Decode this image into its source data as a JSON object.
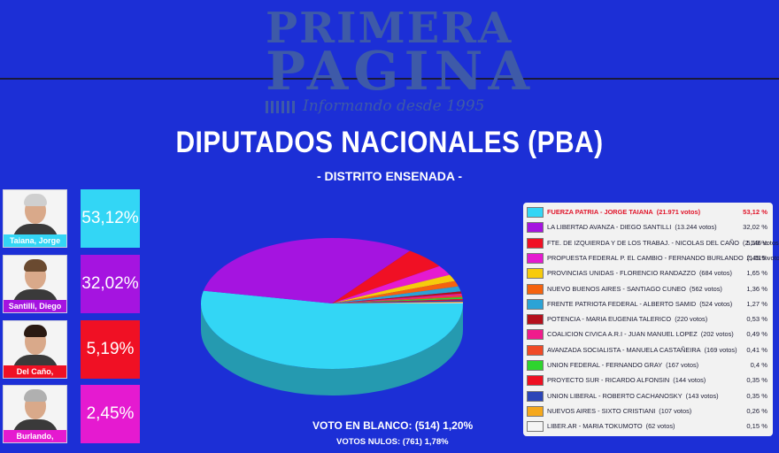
{
  "header": {
    "logo_line1": "PRIMERA",
    "logo_line2": "PAGINA",
    "logo_slogan": "Informando desde 1995"
  },
  "title": "DIPUTADOS NACIONALES (PBA)",
  "subtitle": "- DISTRITO ENSENADA -",
  "candidates": [
    {
      "name": "Taiana, Jorge",
      "pct": "53,12%",
      "color": "#33d6f5",
      "hair": "#cfcfcf"
    },
    {
      "name": "Santilli, Diego",
      "pct": "32,02%",
      "color": "#a514e0",
      "hair": "#6a4a30"
    },
    {
      "name": "Del Caño, Nicolás",
      "pct": "5,19%",
      "color": "#f01024",
      "hair": "#2a1a12"
    },
    {
      "name": "Burlando, Fernando",
      "pct": "2,45%",
      "color": "#e51ad0",
      "hair": "#b0b0b0"
    }
  ],
  "chart_data": {
    "type": "pie",
    "style": "3d",
    "legend_position": "right",
    "series": [
      {
        "label": "FUERZA PATRIA - JORGE TAIANA",
        "votes": "(21.971 votos)",
        "pct_label": "53,12 %",
        "value": 53.12,
        "color": "#33d6f5",
        "highlight": true
      },
      {
        "label": "LA LIBERTAD AVANZA - DIEGO SANTILLI",
        "votes": "(13.244 votos)",
        "pct_label": "32,02 %",
        "value": 32.02,
        "color": "#a514e0"
      },
      {
        "label": "FTE. DE IZQUIERDA Y DE LOS TRABAJ. - NICOLAS DEL CAÑO",
        "votes": "(2.146 votos)",
        "pct_label": "5,19 %",
        "value": 5.19,
        "color": "#f01024"
      },
      {
        "label": "PROPUESTA FEDERAL P. EL CAMBIO - FERNANDO BURLANDO",
        "votes": "(1.015 votos)",
        "pct_label": "2,45 %",
        "value": 2.45,
        "color": "#e51ad0"
      },
      {
        "label": "PROVINCIAS UNIDAS - FLORENCIO RANDAZZO",
        "votes": "(684 votos)",
        "pct_label": "1,65 %",
        "value": 1.65,
        "color": "#f7cb0c"
      },
      {
        "label": "NUEVO BUENOS AIRES - SANTIAGO CUNEO",
        "votes": "(562 votos)",
        "pct_label": "1,36 %",
        "value": 1.36,
        "color": "#f5630e"
      },
      {
        "label": "FRENTE PATRIOTA FEDERAL - ALBERTO SAMID",
        "votes": "(524 votos)",
        "pct_label": "1,27 %",
        "value": 1.27,
        "color": "#2ba3d6"
      },
      {
        "label": "POTENCIA - MARIA EUGENIA TALERICO",
        "votes": "(220 votos)",
        "pct_label": "0,53 %",
        "value": 0.53,
        "color": "#b4101c"
      },
      {
        "label": "COALICION CIVICA A.R.I - JUAN MANUEL LOPEZ",
        "votes": "(202 votos)",
        "pct_label": "0,49 %",
        "value": 0.49,
        "color": "#f01c8c"
      },
      {
        "label": "AVANZADA SOCIALISTA - MANUELA CASTAÑEIRA",
        "votes": "(169 votos)",
        "pct_label": "0,41 %",
        "value": 0.41,
        "color": "#f04a26"
      },
      {
        "label": "UNION FEDERAL - FERNANDO GRAY",
        "votes": "(167 votos)",
        "pct_label": "0,4 %",
        "value": 0.4,
        "color": "#2ed42e"
      },
      {
        "label": "PROYECTO SUR - RICARDO ALFONSIN",
        "votes": "(144 votos)",
        "pct_label": "0,35 %",
        "value": 0.35,
        "color": "#ee1022"
      },
      {
        "label": "UNION LIBERAL - ROBERTO CACHANOSKY",
        "votes": "(143 votos)",
        "pct_label": "0,35 %",
        "value": 0.35,
        "color": "#2c46b8"
      },
      {
        "label": "NUEVOS AIRES - SIXTO CRISTIANI",
        "votes": "(107 votos)",
        "pct_label": "0,26 %",
        "value": 0.26,
        "color": "#f5a81c"
      },
      {
        "label": "LIBER.AR - MARIA TOKUMOTO",
        "votes": "(62 votos)",
        "pct_label": "0,15 %",
        "value": 0.15,
        "color": "#f4f4f4"
      }
    ]
  },
  "footer": {
    "blank_label": "VOTO EN BLANCO:",
    "blank_votes": "(514)",
    "blank_pct": "1,20%",
    "null_label": "VOTOS NULOS:",
    "null_votes": "(761)",
    "null_pct": "1,78%"
  }
}
